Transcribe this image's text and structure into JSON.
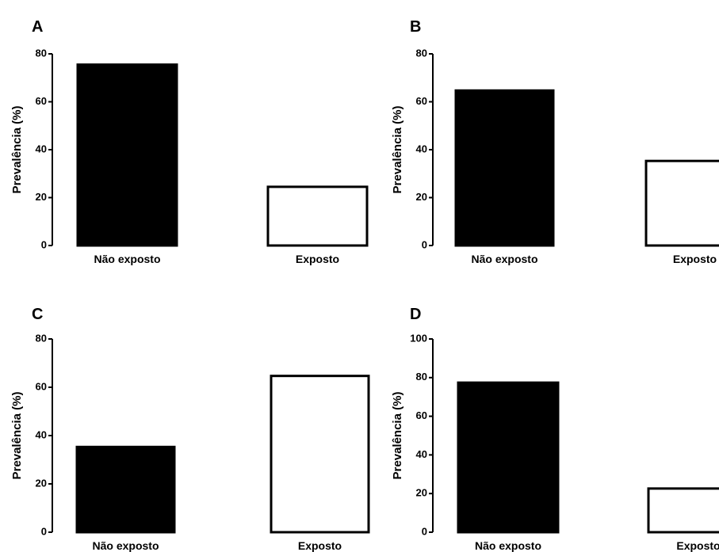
{
  "chart_data": [
    {
      "panel": "A",
      "type": "bar",
      "categories": [
        "Não exposto",
        "Exposto"
      ],
      "values": [
        75.5,
        24.5
      ],
      "bar_fills": [
        "#000000",
        "#ffffff"
      ],
      "ylabel": "Prevalência (%)",
      "ylim": [
        0,
        80
      ],
      "yticks": [
        0,
        20,
        40,
        60,
        80
      ],
      "grid": false
    },
    {
      "panel": "B",
      "type": "bar",
      "categories": [
        "Não exposto",
        "Exposto"
      ],
      "values": [
        64.7,
        35.3
      ],
      "bar_fills": [
        "#000000",
        "#ffffff"
      ],
      "ylabel": "Prevalência (%)",
      "ylim": [
        0,
        80
      ],
      "yticks": [
        0,
        20,
        40,
        60,
        80
      ],
      "grid": false
    },
    {
      "panel": "C",
      "type": "bar",
      "categories": [
        "Não exposto",
        "Exposto"
      ],
      "values": [
        35.3,
        64.7
      ],
      "bar_fills": [
        "#000000",
        "#ffffff"
      ],
      "ylabel": "Prevalência (%)",
      "ylim": [
        0,
        80
      ],
      "yticks": [
        0,
        20,
        40,
        60,
        80
      ],
      "grid": false
    },
    {
      "panel": "D",
      "type": "bar",
      "categories": [
        "Não exposto",
        "Exposto"
      ],
      "values": [
        77.4,
        22.6
      ],
      "bar_fills": [
        "#000000",
        "#ffffff"
      ],
      "ylabel": "Prevalência (%)",
      "ylim": [
        0,
        100
      ],
      "yticks": [
        0,
        20,
        40,
        60,
        80,
        100
      ],
      "grid": false
    }
  ]
}
